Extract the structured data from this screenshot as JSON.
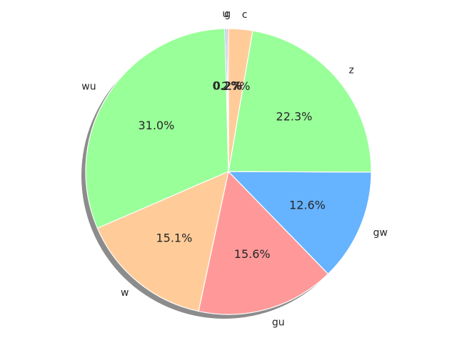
{
  "chart_data": {
    "type": "pie",
    "title": "",
    "categories": [
      "z",
      "c",
      "g",
      "u",
      "wu",
      "w",
      "gu",
      "gw"
    ],
    "values": [
      0.2,
      0.2,
      31.0,
      15.1,
      15.6,
      12.6,
      22.3,
      2.7
    ],
    "display_labels": [
      "g",
      "u",
      "wu",
      "w",
      "gu",
      "gw",
      "z",
      "c"
    ],
    "percent_labels": [
      "0.2%",
      "0.2%",
      "31.0%",
      "15.1%",
      "15.6%",
      "12.6%",
      "22.3%",
      "2.7%"
    ],
    "colors": [
      "#ff9999",
      "#66b3ff",
      "#99ff99",
      "#ffcc99",
      "#ff9999",
      "#66b3ff",
      "#99ff99",
      "#ffcc99"
    ],
    "shadow": true,
    "start_angle": 90,
    "counterclockwise": true
  }
}
